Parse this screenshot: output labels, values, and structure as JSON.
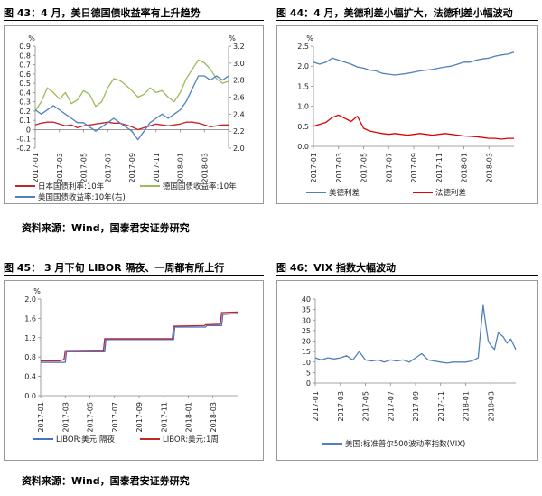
{
  "page": {
    "fig43_title": "图 43：4 月，美日德国债收益率有上升趋势",
    "fig44_title": "图 44：4 月，美德利差小幅扩大，法德利差小幅波动",
    "fig45_title": "图 45：  3 月下旬 LIBOR 隔夜、一周都有所上行",
    "fig46_title": "图 46：VIX 指数大幅波动",
    "source_1": "资料来源：Wind，国泰君安证券研究",
    "source_2": "资料来源：Wind，国泰君安证券研究"
  },
  "chart_data": [
    {
      "id": "fig43",
      "type": "line",
      "title": "图 43：4 月，美日德国债收益率有上升趋势",
      "ylabel_left": "%",
      "ylabel_right": "%",
      "ylim": [
        -0.2,
        0.9
      ],
      "ylim_right": [
        2.0,
        3.2
      ],
      "yticks": [
        "-0.2",
        "-0.1",
        "0",
        "0.1",
        "0.2",
        "0.3",
        "0.4",
        "0.5",
        "0.6",
        "0.7",
        "0.8",
        "0.9"
      ],
      "yticks_right": [
        "2.0",
        "2.2",
        "2.4",
        "2.6",
        "2.8",
        "3.0",
        "3.2"
      ],
      "xlabels": [
        "2017-01",
        "2017-03",
        "2017-05",
        "2017-07",
        "2017-09",
        "2017-11",
        "2018-01",
        "2018-03"
      ],
      "xrange": [
        0,
        16
      ],
      "legend_position": "bottom",
      "series": [
        {
          "name": "日本国债利率:10年",
          "color": "#c0272d",
          "axis": "left",
          "x": [
            0,
            0.5,
            1,
            1.5,
            2,
            2.5,
            3,
            3.5,
            4,
            4.5,
            5,
            5.5,
            6,
            6.5,
            7,
            7.5,
            8,
            8.5,
            9,
            9.5,
            10,
            10.5,
            11,
            11.5,
            12,
            12.5,
            13,
            13.5,
            14,
            14.5,
            15,
            15.5,
            16
          ],
          "y": [
            0.05,
            0.07,
            0.08,
            0.08,
            0.06,
            0.04,
            0.05,
            0.02,
            0.04,
            0.05,
            0.06,
            0.07,
            0.08,
            0.07,
            0.07,
            0.05,
            0.03,
            0.0,
            0.02,
            0.04,
            0.06,
            0.05,
            0.04,
            0.05,
            0.06,
            0.08,
            0.08,
            0.07,
            0.05,
            0.03,
            0.04,
            0.05,
            0.05
          ]
        },
        {
          "name": "德国国债收益率:10年",
          "color": "#9bbb59",
          "axis": "left",
          "x": [
            0,
            0.5,
            1,
            1.5,
            2,
            2.5,
            3,
            3.5,
            4,
            4.5,
            5,
            5.5,
            6,
            6.5,
            7,
            7.5,
            8,
            8.5,
            9,
            9.5,
            10,
            10.5,
            11,
            11.5,
            12,
            12.5,
            13,
            13.5,
            14,
            14.5,
            15,
            15.5,
            16
          ],
          "y": [
            0.2,
            0.3,
            0.45,
            0.4,
            0.33,
            0.4,
            0.28,
            0.32,
            0.42,
            0.38,
            0.25,
            0.3,
            0.45,
            0.55,
            0.53,
            0.48,
            0.42,
            0.35,
            0.38,
            0.45,
            0.4,
            0.42,
            0.35,
            0.3,
            0.4,
            0.55,
            0.65,
            0.75,
            0.72,
            0.65,
            0.55,
            0.5,
            0.52
          ]
        },
        {
          "name": "美国国债收益率:10年(右)",
          "color": "#4f81bd",
          "axis": "right",
          "x": [
            0,
            0.5,
            1,
            1.5,
            2,
            2.5,
            3,
            3.5,
            4,
            4.5,
            5,
            5.5,
            6,
            6.5,
            7,
            7.5,
            8,
            8.5,
            9,
            9.5,
            10,
            10.5,
            11,
            11.5,
            12,
            12.5,
            13,
            13.5,
            14,
            14.5,
            15,
            15.5,
            16
          ],
          "y": [
            2.45,
            2.4,
            2.45,
            2.5,
            2.45,
            2.4,
            2.35,
            2.3,
            2.3,
            2.25,
            2.2,
            2.25,
            2.3,
            2.35,
            2.3,
            2.25,
            2.2,
            2.1,
            2.2,
            2.3,
            2.35,
            2.4,
            2.35,
            2.4,
            2.45,
            2.55,
            2.7,
            2.85,
            2.85,
            2.8,
            2.85,
            2.8,
            2.85
          ]
        }
      ]
    },
    {
      "id": "fig44",
      "type": "line",
      "title": "图 44：4 月，美德利差小幅扩大，法德利差小幅波动",
      "ylabel": "%",
      "ylim": [
        0.0,
        2.5
      ],
      "yticks": [
        "0.0",
        "0.5",
        "1.0",
        "1.5",
        "2.0",
        "2.5"
      ],
      "xlabels": [
        "2017-01",
        "2017-03",
        "2017-05",
        "2017-07",
        "2017-09",
        "2017-11",
        "2018-01",
        "2018-03"
      ],
      "xrange": [
        0,
        16
      ],
      "legend_position": "bottom",
      "series": [
        {
          "name": "美德利差",
          "color": "#4f81bd",
          "x": [
            0,
            0.5,
            1,
            1.5,
            2,
            2.5,
            3,
            3.5,
            4,
            4.5,
            5,
            5.5,
            6,
            6.5,
            7,
            7.5,
            8,
            8.5,
            9,
            9.5,
            10,
            10.5,
            11,
            11.5,
            12,
            12.5,
            13,
            13.5,
            14,
            14.5,
            15,
            15.5,
            16
          ],
          "y": [
            2.1,
            2.05,
            2.1,
            2.2,
            2.15,
            2.1,
            2.05,
            1.98,
            1.95,
            1.9,
            1.88,
            1.82,
            1.8,
            1.78,
            1.8,
            1.82,
            1.85,
            1.88,
            1.9,
            1.92,
            1.95,
            1.98,
            2.0,
            2.05,
            2.1,
            2.1,
            2.15,
            2.18,
            2.2,
            2.25,
            2.28,
            2.3,
            2.35
          ]
        },
        {
          "name": "法德利差",
          "color": "#e00000",
          "x": [
            0,
            0.5,
            1,
            1.5,
            2,
            2.5,
            3,
            3.5,
            4,
            4.5,
            5,
            5.5,
            6,
            6.5,
            7,
            7.5,
            8,
            8.5,
            9,
            9.5,
            10,
            10.5,
            11,
            11.5,
            12,
            12.5,
            13,
            13.5,
            14,
            14.5,
            15,
            15.5,
            16
          ],
          "y": [
            0.5,
            0.55,
            0.6,
            0.72,
            0.78,
            0.7,
            0.62,
            0.75,
            0.45,
            0.38,
            0.35,
            0.32,
            0.3,
            0.32,
            0.3,
            0.28,
            0.3,
            0.32,
            0.3,
            0.28,
            0.3,
            0.32,
            0.3,
            0.28,
            0.26,
            0.25,
            0.24,
            0.22,
            0.2,
            0.2,
            0.18,
            0.2,
            0.2
          ]
        }
      ]
    },
    {
      "id": "fig45",
      "type": "line",
      "title": "图 45：  3 月下旬 LIBOR 隔夜、一周都有所上行",
      "ylabel": "%",
      "ylim": [
        0.0,
        2.0
      ],
      "yticks": [
        "0.0",
        "0.4",
        "0.8",
        "1.2",
        "1.6",
        "2.0"
      ],
      "xlabels": [
        "2017-01",
        "2017-03",
        "2017-05",
        "2017-07",
        "2017-09",
        "2017-11",
        "2018-01",
        "2018-03"
      ],
      "xrange": [
        0,
        16
      ],
      "legend_position": "bottom",
      "series": [
        {
          "name": "LIBOR:美元:隔夜",
          "color": "#4472c4",
          "x": [
            0,
            1.5,
            2.0,
            2.1,
            5.2,
            5.3,
            10.8,
            10.9,
            13.4,
            13.5,
            14.7,
            14.8,
            16
          ],
          "y": [
            0.69,
            0.69,
            0.69,
            0.91,
            0.91,
            1.16,
            1.16,
            1.42,
            1.42,
            1.45,
            1.45,
            1.68,
            1.7
          ]
        },
        {
          "name": "LIBOR:美元:1周",
          "color": "#c0272d",
          "x": [
            0,
            1.5,
            1.9,
            2.0,
            5.1,
            5.2,
            10.7,
            10.8,
            13.3,
            13.4,
            14.6,
            14.7,
            16
          ],
          "y": [
            0.72,
            0.72,
            0.75,
            0.93,
            0.94,
            1.18,
            1.18,
            1.44,
            1.45,
            1.47,
            1.48,
            1.72,
            1.73
          ]
        }
      ]
    },
    {
      "id": "fig46",
      "type": "line",
      "title": "图 46：VIX 指数大幅波动",
      "ylim": [
        0,
        40
      ],
      "yticks": [
        "0",
        "5",
        "10",
        "15",
        "20",
        "25",
        "30",
        "35",
        "40"
      ],
      "xlabels": [
        "2017-01",
        "2017-03",
        "2017-05",
        "2017-07",
        "2017-09",
        "2017-11",
        "2018-01",
        "2018-03"
      ],
      "xrange": [
        0,
        16
      ],
      "legend_position": "bottom",
      "series": [
        {
          "name": "美国:标准普尔500波动率指数(VIX)",
          "color": "#4f81bd",
          "x": [
            0,
            0.5,
            1,
            1.5,
            2,
            2.5,
            3,
            3.5,
            4,
            4.5,
            5,
            5.5,
            6,
            6.5,
            7,
            7.5,
            8,
            8.5,
            9,
            9.5,
            10,
            10.5,
            11,
            11.5,
            12,
            12.5,
            13,
            13.2,
            13.4,
            13.6,
            13.8,
            14,
            14.3,
            14.6,
            15,
            15.3,
            15.6,
            16
          ],
          "y": [
            12,
            11,
            12,
            11.5,
            12,
            13,
            11,
            15,
            11,
            10.5,
            11,
            10,
            11,
            10.5,
            11,
            10,
            12,
            14,
            11,
            10.5,
            10,
            9.5,
            10,
            10,
            10,
            10.5,
            12,
            25,
            37,
            28,
            20,
            18,
            16,
            24,
            22,
            19,
            21,
            16
          ]
        }
      ]
    }
  ]
}
